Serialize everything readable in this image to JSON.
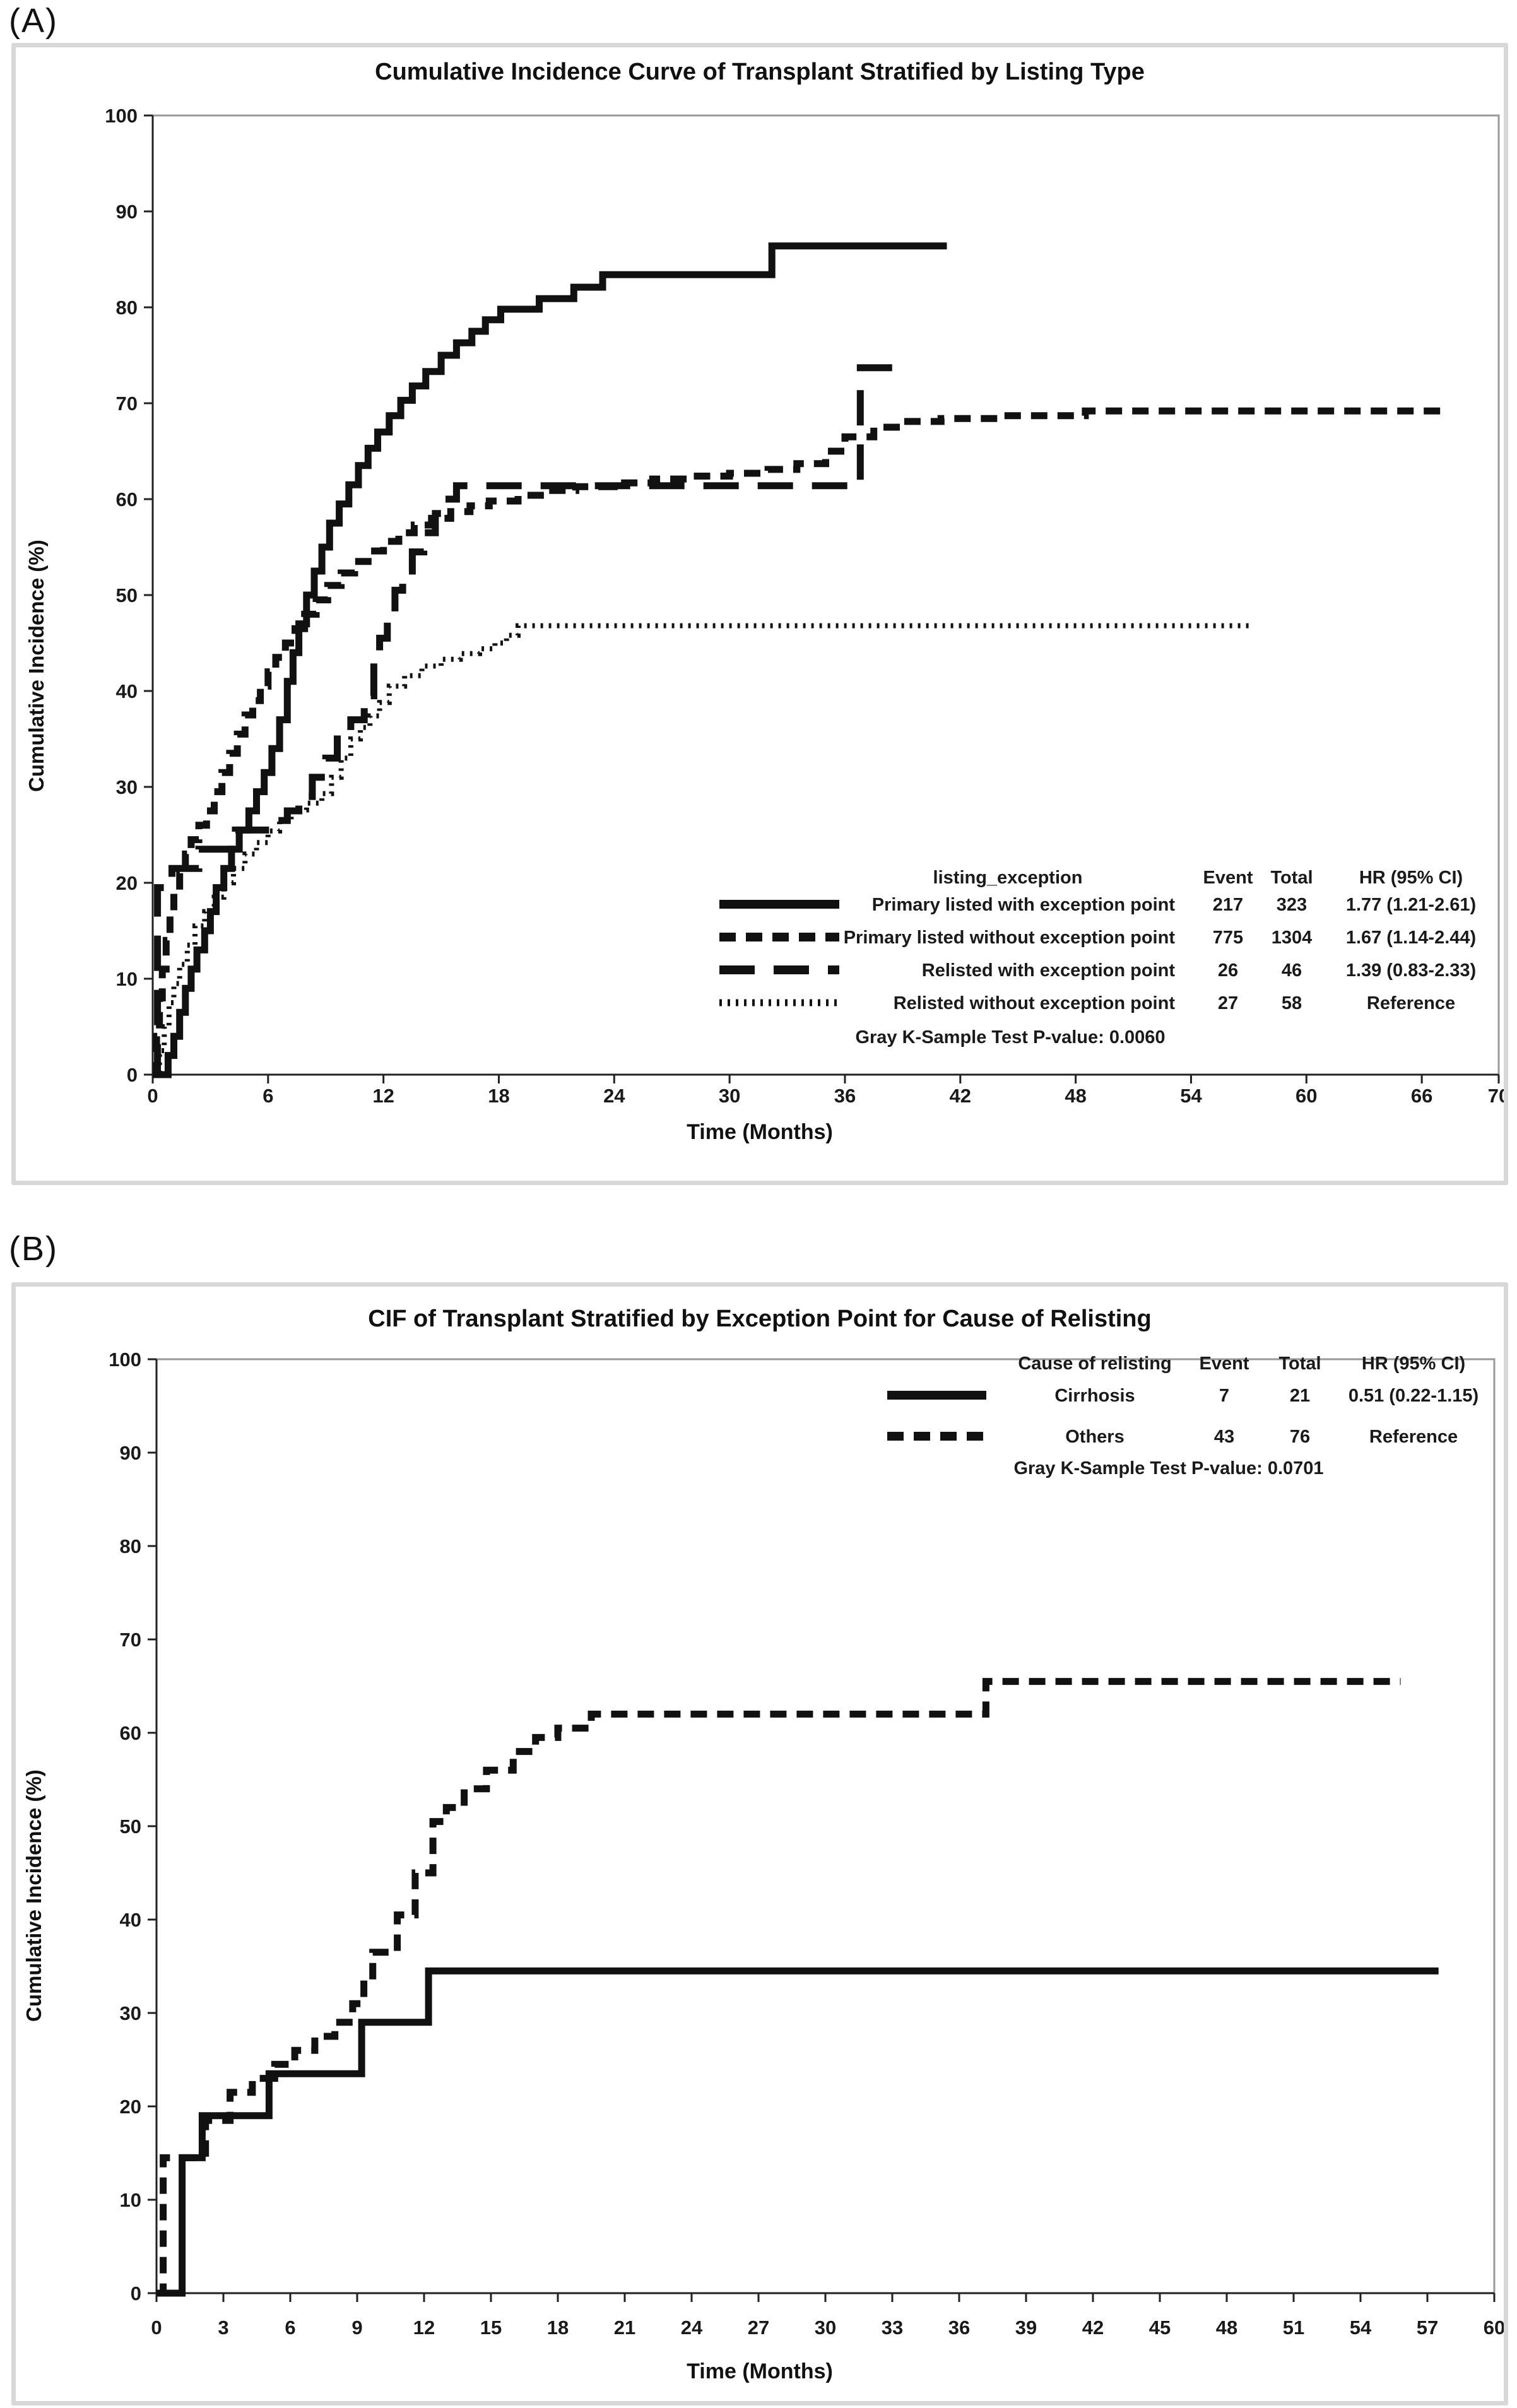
{
  "panels": [
    {
      "label": "(A)"
    },
    {
      "label": "(B)"
    }
  ],
  "colors": {
    "curve": "#111111",
    "plot_border": "#9a9a9a",
    "axis": "#222222",
    "frame": "#d8d8d8"
  },
  "chart_data": [
    {
      "id": "panel_a",
      "type": "line",
      "subtype": "step-cumulative-incidence",
      "title": "Cumulative Incidence Curve of Transplant Stratified by Listing Type",
      "xlabel": "Time (Months)",
      "ylabel": "Cumulative Incidence (%)",
      "xlim": [
        0,
        70
      ],
      "ylim": [
        0,
        100
      ],
      "xticks": [
        0,
        6,
        12,
        18,
        24,
        30,
        36,
        42,
        48,
        54,
        60,
        66,
        70
      ],
      "yticks": [
        0,
        10,
        20,
        30,
        40,
        50,
        60,
        70,
        80,
        90,
        100
      ],
      "grid": false,
      "legend": {
        "position": "inside-bottom-right",
        "group_header": "listing_exception",
        "event_header": "Event",
        "total_header": "Total",
        "hr_header": "HR (95% CI)",
        "pvalue_note": "Gray K-Sample Test P-value: 0.0060"
      },
      "series": [
        {
          "name": "Primary listed with exception point",
          "event": "217",
          "total": "323",
          "hr": "1.77 (1.21-2.61)",
          "style": "solid",
          "end_month": 41.3,
          "points": [
            [
              0,
              0
            ],
            [
              0.8,
              2
            ],
            [
              1.1,
              4
            ],
            [
              1.4,
              6.5
            ],
            [
              1.7,
              9
            ],
            [
              2,
              11
            ],
            [
              2.3,
              13
            ],
            [
              2.7,
              15
            ],
            [
              3,
              17
            ],
            [
              3.3,
              19.5
            ],
            [
              3.7,
              21.5
            ],
            [
              4.1,
              23.5
            ],
            [
              4.5,
              25.5
            ],
            [
              5,
              27.5
            ],
            [
              5.4,
              29.5
            ],
            [
              5.8,
              31.5
            ],
            [
              6.2,
              34
            ],
            [
              6.6,
              37
            ],
            [
              7,
              41
            ],
            [
              7.3,
              44
            ],
            [
              7.6,
              47
            ],
            [
              8,
              50
            ],
            [
              8.4,
              52.5
            ],
            [
              8.8,
              55
            ],
            [
              9.2,
              57.5
            ],
            [
              9.7,
              59.5
            ],
            [
              10.2,
              61.5
            ],
            [
              10.7,
              63.5
            ],
            [
              11.2,
              65.3
            ],
            [
              11.7,
              67
            ],
            [
              12.3,
              68.7
            ],
            [
              12.9,
              70.3
            ],
            [
              13.5,
              71.8
            ],
            [
              14.2,
              73.3
            ],
            [
              15,
              75
            ],
            [
              15.8,
              76.3
            ],
            [
              16.6,
              77.5
            ],
            [
              17.3,
              78.7
            ],
            [
              18.1,
              79.8
            ],
            [
              20.1,
              80.9
            ],
            [
              21.9,
              82.1
            ],
            [
              23.4,
              83.4
            ],
            [
              32.2,
              86.4
            ]
          ]
        },
        {
          "name": "Primary listed without exception point",
          "event": "775",
          "total": "1304",
          "hr": "1.67 (1.14-2.44)",
          "style": "shortdash",
          "end_month": 67.2,
          "points": [
            [
              0,
              0
            ],
            [
              0.2,
              4
            ],
            [
              0.35,
              8
            ],
            [
              0.5,
              11
            ],
            [
              0.7,
              14
            ],
            [
              0.9,
              17
            ],
            [
              1.1,
              19
            ],
            [
              1.4,
              21
            ],
            [
              1.7,
              23
            ],
            [
              2,
              24.5
            ],
            [
              2.4,
              26
            ],
            [
              2.8,
              27.5
            ],
            [
              3.2,
              29.5
            ],
            [
              3.6,
              31.5
            ],
            [
              4,
              33.5
            ],
            [
              4.4,
              35.5
            ],
            [
              4.8,
              37.5
            ],
            [
              5.2,
              39
            ],
            [
              5.6,
              40.5
            ],
            [
              6,
              42
            ],
            [
              6.4,
              43.5
            ],
            [
              6.9,
              45
            ],
            [
              7.4,
              46.5
            ],
            [
              7.9,
              48
            ],
            [
              8.5,
              49.5
            ],
            [
              9.1,
              51
            ],
            [
              9.8,
              52.3
            ],
            [
              10.5,
              53.5
            ],
            [
              11.2,
              54.6
            ],
            [
              12,
              55.6
            ],
            [
              12.8,
              56.5
            ],
            [
              13.6,
              57.3
            ],
            [
              14.5,
              58
            ],
            [
              15.5,
              58.7
            ],
            [
              16.5,
              59.3
            ],
            [
              17.5,
              59.8
            ],
            [
              19,
              60.4
            ],
            [
              20.5,
              60.9
            ],
            [
              22,
              61.3
            ],
            [
              24,
              61.7
            ],
            [
              26,
              62.1
            ],
            [
              28,
              62.4
            ],
            [
              30,
              62.7
            ],
            [
              32,
              63.1
            ],
            [
              33.5,
              63.7
            ],
            [
              35,
              65
            ],
            [
              36,
              66.5
            ],
            [
              37.5,
              67.5
            ],
            [
              39,
              68.1
            ],
            [
              41,
              68.4
            ],
            [
              44,
              68.7
            ],
            [
              48.5,
              69.2
            ]
          ]
        },
        {
          "name": "Relisted with exception point",
          "event": "26",
          "total": "46",
          "hr": "1.39 (0.83-2.33)",
          "style": "longdash",
          "end_month": 39.4,
          "points": [
            [
              0,
              0
            ],
            [
              0.25,
              19.5
            ],
            [
              1,
              21.5
            ],
            [
              2.4,
              23.5
            ],
            [
              4.3,
              25.5
            ],
            [
              6.3,
              26.5
            ],
            [
              7,
              27.5
            ],
            [
              7.6,
              29
            ],
            [
              8.3,
              31
            ],
            [
              9,
              33
            ],
            [
              9.6,
              35
            ],
            [
              10.3,
              37
            ],
            [
              11,
              39.5
            ],
            [
              11.5,
              43
            ],
            [
              11.8,
              45.5
            ],
            [
              12.2,
              48
            ],
            [
              12.6,
              50.5
            ],
            [
              13,
              52.5
            ],
            [
              13.5,
              54.5
            ],
            [
              14.1,
              56.5
            ],
            [
              14.7,
              58.5
            ],
            [
              15.2,
              60
            ],
            [
              15.8,
              61.4
            ],
            [
              36.8,
              73.7
            ]
          ]
        },
        {
          "name": "Relisted without exception point",
          "event": "27",
          "total": "58",
          "hr": "Reference",
          "style": "dotted",
          "end_month": 57.2,
          "points": [
            [
              0,
              0
            ],
            [
              0.35,
              2.5
            ],
            [
              0.6,
              5
            ],
            [
              0.85,
              7.5
            ],
            [
              1.1,
              9.5
            ],
            [
              1.4,
              11.5
            ],
            [
              1.8,
              13.5
            ],
            [
              2.2,
              15.5
            ],
            [
              2.7,
              17
            ],
            [
              3.2,
              18.5
            ],
            [
              3.7,
              20
            ],
            [
              4.2,
              21.5
            ],
            [
              4.8,
              23
            ],
            [
              5.4,
              24.2
            ],
            [
              6,
              25.4
            ],
            [
              6.6,
              26.5
            ],
            [
              7.2,
              27.6
            ],
            [
              8,
              28.3
            ],
            [
              8.8,
              29.3
            ],
            [
              9.3,
              31
            ],
            [
              9.8,
              33
            ],
            [
              10.3,
              35
            ],
            [
              10.8,
              36.2
            ],
            [
              11.3,
              37.4
            ],
            [
              11.8,
              38.8
            ],
            [
              12.3,
              40.5
            ],
            [
              13.1,
              41.6
            ],
            [
              14,
              42.6
            ],
            [
              15,
              43.3
            ],
            [
              16,
              43.9
            ],
            [
              17,
              44.4
            ],
            [
              17.8,
              45
            ],
            [
              18.4,
              45.8
            ],
            [
              19,
              46.8
            ]
          ]
        }
      ]
    },
    {
      "id": "panel_b",
      "type": "line",
      "subtype": "step-cumulative-incidence",
      "title": "CIF of Transplant Stratified by Exception Point for Cause of Relisting",
      "xlabel": "Time (Months)",
      "ylabel": "Cumulative Incidence (%)",
      "xlim": [
        0,
        60
      ],
      "ylim": [
        0,
        100
      ],
      "xticks": [
        0,
        3,
        6,
        9,
        12,
        15,
        18,
        21,
        24,
        27,
        30,
        33,
        36,
        39,
        42,
        45,
        48,
        51,
        54,
        57,
        60
      ],
      "yticks": [
        0,
        10,
        20,
        30,
        40,
        50,
        60,
        70,
        80,
        90,
        100
      ],
      "grid": false,
      "legend": {
        "position": "inside-top-right",
        "group_header": "Cause of relisting",
        "event_header": "Event",
        "total_header": "Total",
        "hr_header": "HR (95% CI)",
        "pvalue_note": "Gray K-Sample Test P-value: 0.0701"
      },
      "series": [
        {
          "name": "Cirrhosis",
          "event": "7",
          "total": "21",
          "hr": "0.51 (0.22-1.15)",
          "style": "solid",
          "end_month": 57.5,
          "points": [
            [
              0,
              0
            ],
            [
              1.15,
              14.5
            ],
            [
              2.05,
              19
            ],
            [
              5.05,
              23.5
            ],
            [
              9.2,
              29
            ],
            [
              12.2,
              34.5
            ]
          ]
        },
        {
          "name": "Others",
          "event": "43",
          "total": "76",
          "hr": "Reference",
          "style": "shortdash",
          "end_month": 55.8,
          "points": [
            [
              0,
              0
            ],
            [
              0.3,
              14.5
            ],
            [
              2.2,
              18.5
            ],
            [
              3.3,
              21.5
            ],
            [
              4.3,
              23
            ],
            [
              5.3,
              24.5
            ],
            [
              6.2,
              26
            ],
            [
              7.1,
              27.5
            ],
            [
              8,
              29
            ],
            [
              8.8,
              31
            ],
            [
              9.3,
              33.5
            ],
            [
              9.7,
              36.5
            ],
            [
              10.8,
              40.5
            ],
            [
              11.6,
              45
            ],
            [
              12.4,
              50.5
            ],
            [
              13,
              52
            ],
            [
              13.8,
              54
            ],
            [
              14.8,
              56
            ],
            [
              16,
              58
            ],
            [
              17,
              59.5
            ],
            [
              18,
              60.5
            ],
            [
              19.5,
              62
            ],
            [
              37.2,
              65.5
            ]
          ]
        }
      ]
    }
  ]
}
